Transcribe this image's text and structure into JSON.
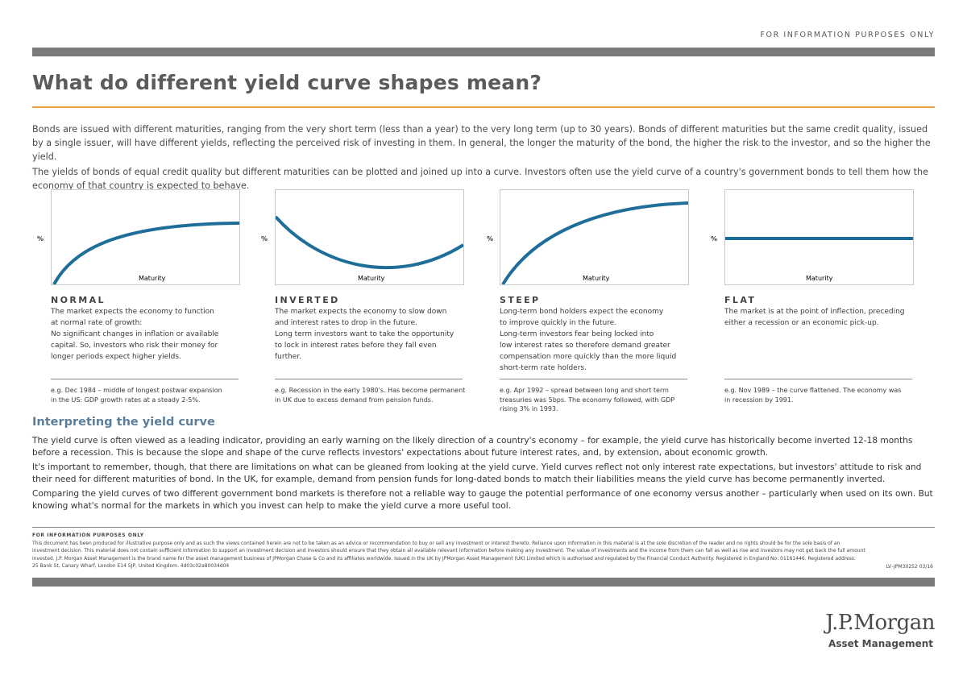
{
  "header": {
    "top_label": "FOR INFORMATION PURPOSES ONLY",
    "title": "What do different yield curve shapes mean?"
  },
  "intro": {
    "p1": "Bonds are issued with different maturities, ranging from the very short term (less than a year) to the very long term (up to 30 years). Bonds of different maturities but the same credit quality, issued by a single issuer, will have different yields, reflecting the perceived risk of investing in them. In general, the longer the maturity of the bond, the higher the risk to the investor, and so the higher the yield.",
    "p2": "The yields of bonds of equal credit quality but different maturities can be plotted and joined up into a curve. Investors often use the yield curve of a country's government bonds to tell them how the economy of that country is expected to behave."
  },
  "colors": {
    "curve": "#1f6e99",
    "accent_rule": "#e8a33c",
    "bar": "#7a7a7a",
    "subtitle": "#5d7e9a"
  },
  "curves": [
    {
      "chart": {
        "y_label": "%",
        "x_label": "Maturity",
        "shape": "normal"
      },
      "title": "NORMAL",
      "desc": [
        "The market expects the economy to function",
        "at normal rate of growth:",
        "No significant changes in inflation or available",
        "capital. So, investors who risk their money for",
        "longer periods expect higher yields."
      ],
      "example": [
        "e.g. Dec 1984 – middle of longest postwar expansion",
        "in the US: GDP growth rates at a steady 2-5%."
      ]
    },
    {
      "chart": {
        "y_label": "%",
        "x_label": "Maturity",
        "shape": "inverted"
      },
      "title": "INVERTED",
      "desc": [
        "The market expects the economy to slow down",
        "and interest rates to drop in the future.",
        "Long term investors want to take the opportunity",
        "to lock in interest rates before they fall even further."
      ],
      "example": [
        "e.g. Recession in the early 1980's. Has become permanent",
        "in UK due to excess demand from pension funds."
      ]
    },
    {
      "chart": {
        "y_label": "%",
        "x_label": "Maturity",
        "shape": "steep"
      },
      "title": "STEEP",
      "desc": [
        "Long-term bond holders expect the economy",
        "to improve quickly in the future.",
        "Long-term investors fear being locked into",
        "low interest rates so therefore demand greater",
        "compensation more quickly than the more liquid",
        "short-term rate holders."
      ],
      "example": [
        "e.g. Apr 1992 – spread between long and short term",
        "treasuries was 5bps. The economy followed, with GDP",
        "rising 3% in 1993."
      ]
    },
    {
      "chart": {
        "y_label": "%",
        "x_label": "Maturity",
        "shape": "flat"
      },
      "title": "FLAT",
      "desc": [
        "The market is at the point of inflection, preceding",
        "either a recession or an economic pick-up."
      ],
      "example": [
        "e.g. Nov 1989 – the curve flattened. The economy was",
        "in recession by 1991."
      ]
    }
  ],
  "interpreting": {
    "title": "Interpreting the yield curve",
    "p1": "The yield curve is often viewed as a leading indicator, providing an early warning on the likely direction of a country's economy – for example, the yield curve has historically become inverted 12-18 months before a recession. This is because the slope and shape of the curve reflects investors' expectations about future interest rates, and, by extension, about economic growth.",
    "p2": "It's important to remember, though, that there are limitations on what can be gleaned from looking at the yield curve. Yield curves reflect not only interest rate expectations, but investors' attitude to risk and their need for different maturities of bond. In the UK, for example, demand from pension funds for long-dated bonds to match their liabilities means the yield curve has become permanently inverted.",
    "p3": "Comparing the yield curves of two different government bond markets is therefore not a reliable way to gauge the potential performance of one economy versus another – particularly when used on its own. But knowing what's normal for the markets in which you invest can help to make the yield curve a more useful tool."
  },
  "footer": {
    "heading": "FOR INFORMATION PURPOSES ONLY",
    "line1": "This document has been produced for illustrative purpose only and as such the views contained herein are not to be taken as an advice or recommendation to buy or sell any investment or interest thereto. Reliance upon information in this material is at the sole discretion of the reader and no rights should be for the sole basis of an",
    "line2": "investment decision. This material does not contain sufficient information to support an investment decision and investors should ensure that they obtain all available relevant information before making any investment. The value of investments and the income from them can fall as well as rise and investors may not get back the full amount",
    "line3": "invested. J.P. Morgan Asset Management is the brand name for the asset management business of JPMorgan Chase & Co and its affiliates worldwide. Issued in the UK by JPMorgan Asset Management (UK) Limited which is authorised and regulated by the Financial Conduct Authority. Registered in England No: 01161446. Registered address:",
    "line4": "25 Bank St, Canary Wharf, London E14 5JP, United Kingdom. 4d03c02a80034d04",
    "ref": "LV–JPM30252 03/16"
  },
  "logo": {
    "line1": "J.P.Morgan",
    "line2": "Asset Management"
  }
}
